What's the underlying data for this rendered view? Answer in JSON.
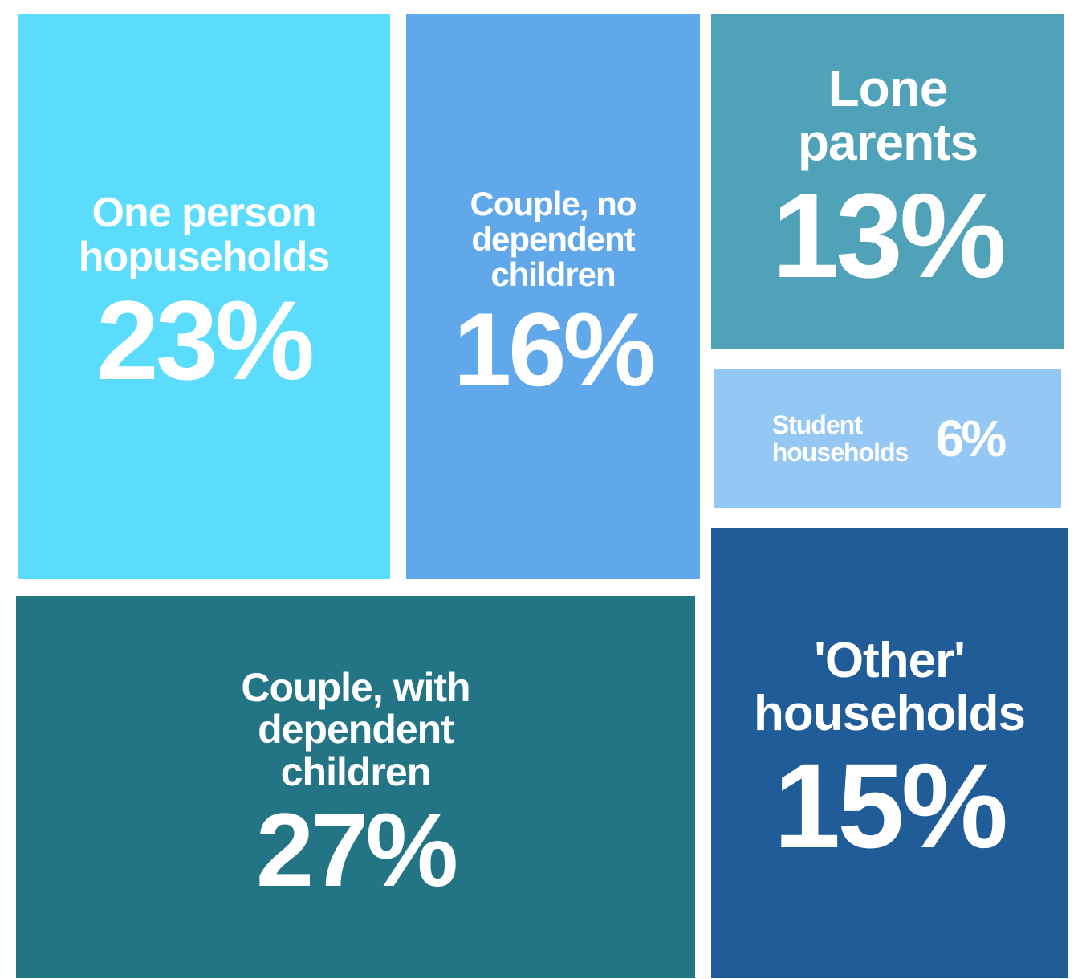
{
  "chart_data": {
    "type": "treemap",
    "categories": [
      "One person hopuseholds",
      "Couple, no dependent children",
      "Lone parents",
      "Student households",
      "Couple, with dependent children",
      "'Other' households"
    ],
    "values": [
      23,
      16,
      13,
      6,
      27,
      15
    ],
    "value_labels": [
      "23%",
      "16%",
      "13%",
      "6%",
      "27%",
      "15%"
    ],
    "colors": [
      "#5bdcfc",
      "#60a8ea",
      "#50a2b8",
      "#95c7f5",
      "#237585",
      "#1f5c98"
    ]
  }
}
